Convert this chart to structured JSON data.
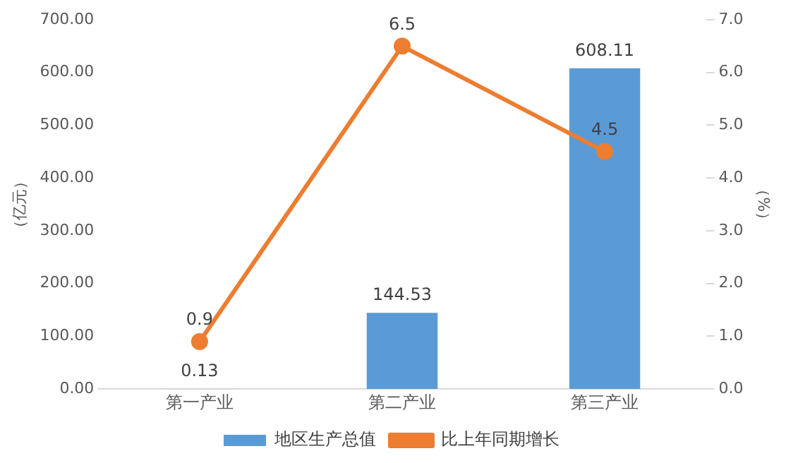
{
  "chart_data": {
    "type": "bar",
    "categories": [
      "第一产业",
      "第二产业",
      "第三产业"
    ],
    "ylabel": "（亿元）",
    "y2label": "（%）",
    "series": [
      {
        "name": "地区生产总值",
        "color": "#5b9bd5",
        "values": [
          0.13,
          144.53,
          608.11
        ]
      },
      {
        "name": "比上年同期增长",
        "type": "line",
        "color": "#ed7d31",
        "axis": "y2",
        "marker": "circle",
        "values": [
          0.9,
          6.5,
          4.5
        ]
      }
    ],
    "ylim": [
      0,
      700
    ],
    "yticks": [
      {
        "value": 0,
        "label": "0.00"
      },
      {
        "value": 100,
        "label": "100.00"
      },
      {
        "value": 200,
        "label": "200.00"
      },
      {
        "value": 300,
        "label": "300.00"
      },
      {
        "value": 400,
        "label": "400.00"
      },
      {
        "value": 500,
        "label": "500.00"
      },
      {
        "value": 600,
        "label": "600.00"
      },
      {
        "value": 700,
        "label": "700.00"
      }
    ],
    "y2lim": [
      0,
      7
    ],
    "y2ticks": [
      {
        "value": 0,
        "label": "0.0"
      },
      {
        "value": 1,
        "label": "1.0"
      },
      {
        "value": 2,
        "label": "2.0"
      },
      {
        "value": 3,
        "label": "3.0"
      },
      {
        "value": 4,
        "label": "4.0"
      },
      {
        "value": 5,
        "label": "5.0"
      },
      {
        "value": 6,
        "label": "6.0"
      },
      {
        "value": 7,
        "label": "7.0"
      }
    ],
    "grid": false,
    "legend": "bottom",
    "data_labels": true
  }
}
